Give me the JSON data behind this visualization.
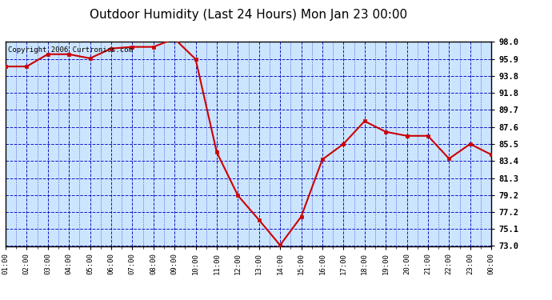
{
  "title": "Outdoor Humidity (Last 24 Hours) Mon Jan 23 00:00",
  "copyright": "Copyright 2006 Curtronics.com",
  "x_labels": [
    "01:00",
    "02:00",
    "03:00",
    "04:00",
    "05:00",
    "06:00",
    "07:00",
    "08:00",
    "09:00",
    "10:00",
    "11:00",
    "12:00",
    "13:00",
    "14:00",
    "15:00",
    "16:00",
    "17:00",
    "18:00",
    "19:00",
    "20:00",
    "21:00",
    "22:00",
    "23:00",
    "00:00"
  ],
  "x_values": [
    1,
    2,
    3,
    4,
    5,
    6,
    7,
    8,
    9,
    10,
    11,
    12,
    13,
    14,
    15,
    16,
    17,
    18,
    19,
    20,
    21,
    22,
    23,
    24
  ],
  "y_values": [
    95.0,
    95.0,
    96.5,
    96.5,
    96.0,
    97.2,
    97.4,
    97.4,
    98.4,
    95.9,
    84.5,
    79.2,
    76.2,
    73.1,
    76.6,
    83.6,
    85.5,
    88.3,
    87.0,
    86.5,
    86.5,
    83.7,
    85.5,
    84.2
  ],
  "y_ticks": [
    73.0,
    75.1,
    77.2,
    79.2,
    81.3,
    83.4,
    85.5,
    87.6,
    89.7,
    91.8,
    93.8,
    95.9,
    98.0
  ],
  "y_min": 73.0,
  "y_max": 98.0,
  "line_color": "#cc0000",
  "marker_color": "#cc0000",
  "bg_color": "#cce5ff",
  "outer_bg": "#ffffff",
  "grid_color": "#0000bb",
  "title_color": "#000000",
  "title_fontsize": 11,
  "copyright_fontsize": 6.5
}
